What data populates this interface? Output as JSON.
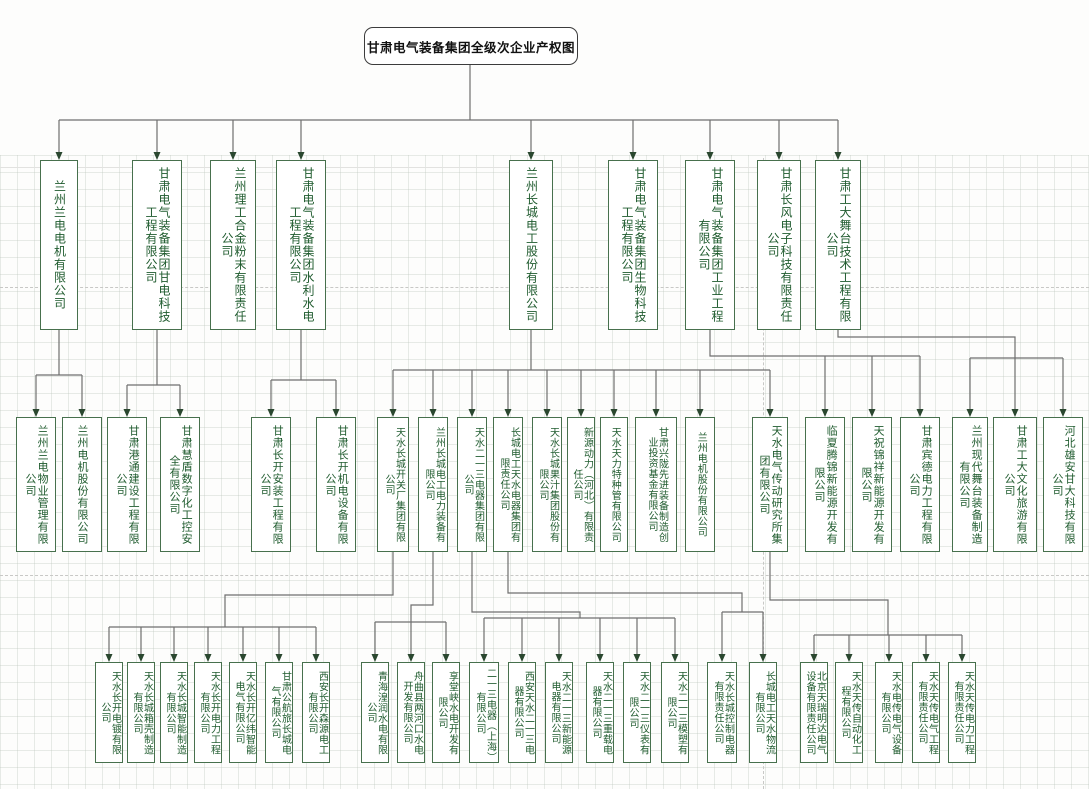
{
  "title": "甘肃电气装备集团全级次企业产权图",
  "colors": {
    "box_border": "#47704d",
    "box_text": "#1f5b2e",
    "title_border": "#3c3c3c",
    "title_text": "#111111",
    "connector_line": "#6f6f6f",
    "arrowhead": "#2a472f",
    "grid_line": "#bcc6bc",
    "page_boundary": "#c8c8c6"
  },
  "orgs": {
    "l2": [
      "兰州兰电电机有限公司",
      "甘肃电气装备集团甘电科技工程有限公司",
      "兰州理工合金粉末有限责任公司",
      "甘肃电气装备集团水利水电工程有限公司",
      "兰州长城电工股份有限公司",
      "甘肃电气装备集团生物科技工程有限公司",
      "甘肃电气装备集团工业工程有限公司",
      "甘肃长风电子科技有限责任公司",
      "甘肃工大舞台技术工程有限公司"
    ],
    "l3": [
      "兰州兰电物业管理有限公司",
      "兰州电机股份有限公司",
      "甘肃港通建设工程有限公司",
      "甘肃慧盾数字化工控安全有限公司",
      "甘肃长开安装工程有限公司",
      "甘肃长开机电设备有限公司",
      "天水长城开关厂集团有限公司",
      "兰州长城电工电力装备有限公司",
      "天水二一三电器集团有限公司",
      "长城电工天水电器集团有限责任公司",
      "天水长城果汁集团股份有限公司",
      "新源动力（河北）有限责任公司",
      "天水天力特种管有限公司",
      "甘肃兴陇先进装备制造创业投资基金有限公司",
      "兰州电机股份有限公司",
      "天水电气传动研究所集团有限公司",
      "临夏腾锦新能源开发有限公司",
      "天祝锦祥新能源开发有限公司",
      "甘肃宾德电力工程有限公司",
      "兰州现代舞台装备制造有限公司",
      "甘肃工大文化旅游有限公司",
      "河北雄安甘大科技有限公司"
    ],
    "l4": [
      "天水长开电镀有限公司",
      "天水长城箱壳制造有限公司",
      "天水长城智能制造有限公司",
      "天水长开电力工程有限公司",
      "天水长开亿纬智能电气有限公司",
      "甘肃公航旅长城电气有限公司",
      "西安长开森源电工有限公司",
      "青海湟润水电有限公司",
      "舟曲县两河口水电开发有限公司",
      "享堂峡水电开发有限公司",
      "二一三电器（上海）有限公司",
      "西安天水二一三电器有限公司",
      "天水二一三新能源电器有限公司",
      "天水二一三重载电器有限公司",
      "天水二一三仪表有限公司",
      "天水二一三模塑有限公司",
      "天水长城控制电器有限责任公司",
      "长城电工天水物流有限公司",
      "北京天瑞明达电气设备有限责任公司",
      "天水天传自动化工程有限公司",
      "天水电传电气设备有限公司",
      "天水天传电气工程有限责任公司",
      "天水天传电力工程有限责任公司"
    ]
  }
}
